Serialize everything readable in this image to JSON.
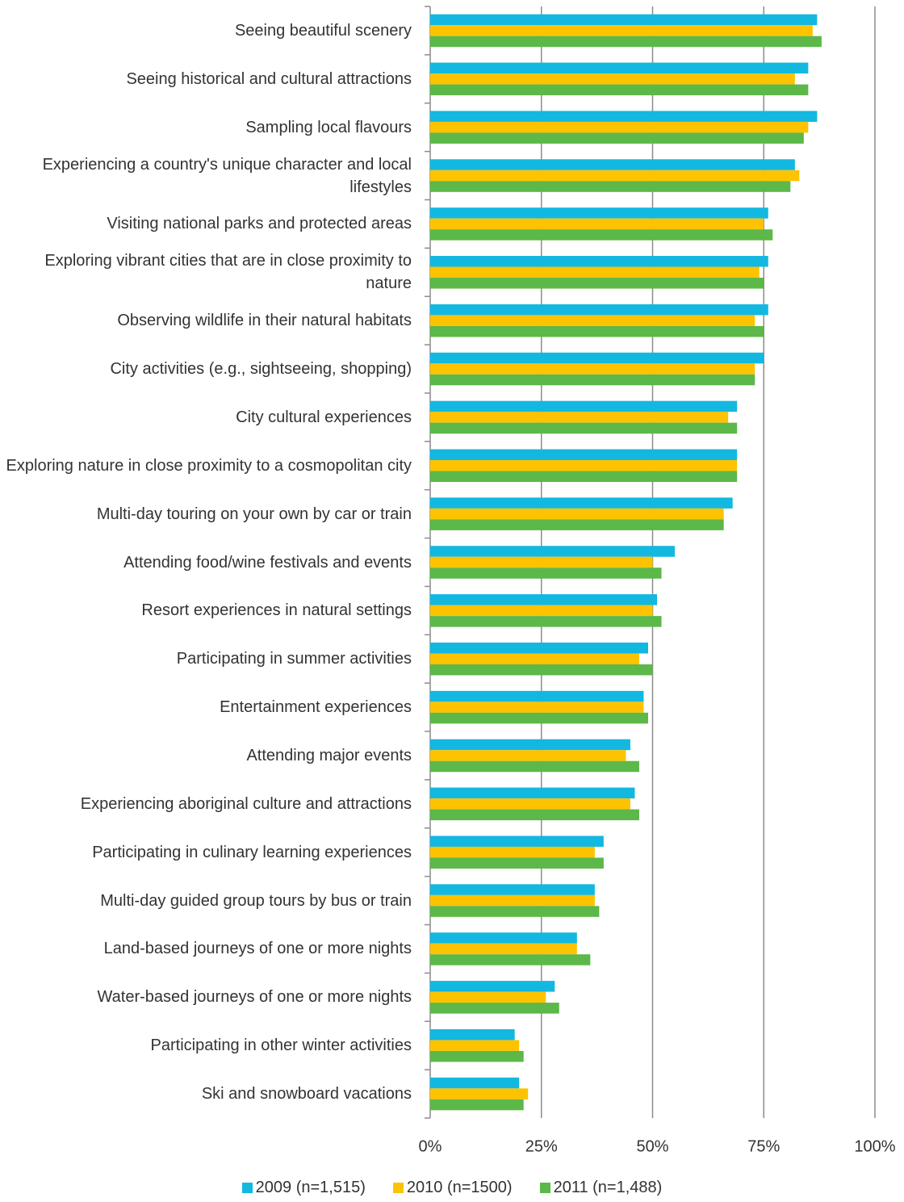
{
  "chart_data": {
    "type": "bar",
    "orientation": "horizontal",
    "categories": [
      "Seeing beautiful scenery",
      "Seeing historical and cultural attractions",
      "Sampling local flavours",
      "Experiencing a country's unique character and local lifestyles",
      "Visiting national parks and protected areas",
      "Exploring vibrant cities that are in close proximity to nature",
      "Observing wildlife in their natural habitats",
      "City activities (e.g., sightseeing, shopping)",
      "City cultural experiences",
      "Exploring nature in close proximity to a cosmopolitan city",
      "Multi-day touring on your own by car or train",
      "Attending food/wine festivals and events",
      "Resort experiences in natural settings",
      "Participating in summer activities",
      "Entertainment experiences",
      "Attending major events",
      "Experiencing aboriginal culture and attractions",
      "Participating in culinary learning experiences",
      "Multi-day guided group tours by bus or train",
      "Land-based journeys of one or more nights",
      "Water-based journeys of one or more nights",
      "Participating in other winter activities",
      "Ski and snowboard vacations"
    ],
    "series": [
      {
        "name": "2009 (n=1,515)",
        "color": "#13b8e0",
        "values": [
          87,
          85,
          87,
          82,
          76,
          76,
          76,
          75,
          69,
          69,
          68,
          55,
          51,
          49,
          48,
          45,
          46,
          39,
          37,
          33,
          28,
          19,
          20
        ]
      },
      {
        "name": "2010 (n=1500)",
        "color": "#fdc300",
        "values": [
          86,
          82,
          85,
          83,
          75,
          74,
          73,
          73,
          67,
          69,
          66,
          50,
          50,
          47,
          48,
          44,
          45,
          37,
          37,
          33,
          26,
          20,
          22
        ]
      },
      {
        "name": "2011 (n=1,488)",
        "color": "#5cb848",
        "values": [
          88,
          85,
          84,
          81,
          77,
          75,
          75,
          73,
          69,
          69,
          66,
          52,
          52,
          50,
          49,
          47,
          47,
          39,
          38,
          36,
          29,
          21,
          21
        ]
      }
    ],
    "xlim": [
      0,
      100
    ],
    "xticks": [
      {
        "value": 0,
        "label": "0%"
      },
      {
        "value": 25,
        "label": "25%"
      },
      {
        "value": 50,
        "label": "50%"
      },
      {
        "value": 75,
        "label": "75%"
      },
      {
        "value": 100,
        "label": "100%"
      }
    ],
    "grid": true,
    "legend": "bottom"
  }
}
